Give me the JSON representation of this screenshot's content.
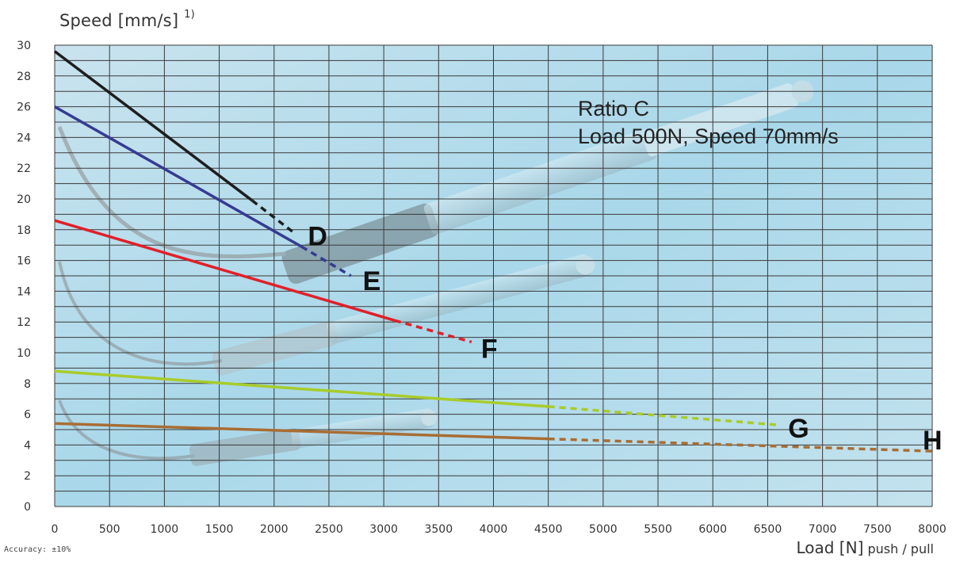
{
  "chart_data": {
    "type": "line",
    "ylabel": "Speed [mm/s]",
    "ylabel_note": "1)",
    "xlabel_main": "Load [N]",
    "xlabel_sub": "push / pull",
    "xlim": [
      0,
      8000
    ],
    "ylim": [
      0,
      30
    ],
    "xticks": [
      "0",
      "500",
      "1000",
      "1500",
      "2000",
      "2500",
      "3000",
      "3500",
      "4000",
      "4500",
      "5000",
      "5500",
      "6000",
      "6500",
      "7000",
      "7500",
      "8000"
    ],
    "yticks": [
      "0",
      "2",
      "4",
      "6",
      "8",
      "10",
      "12",
      "14",
      "16",
      "18",
      "20",
      "22",
      "24",
      "26",
      "28",
      "30"
    ],
    "grid": true,
    "annotation": [
      "Ratio C",
      "Load 500N, Speed 70mm/s"
    ],
    "footnote": "Accuracy: ±10%",
    "series": [
      {
        "name": "D",
        "color": "#1e1e1e",
        "solid": [
          [
            0,
            29.6
          ],
          [
            1800,
            19.9
          ]
        ],
        "dashed": [
          [
            1800,
            19.9
          ],
          [
            2200,
            17.7
          ]
        ]
      },
      {
        "name": "E",
        "color": "#353b92",
        "solid": [
          [
            0,
            26.0
          ],
          [
            2250,
            16.9
          ]
        ],
        "dashed": [
          [
            2250,
            16.9
          ],
          [
            2700,
            15.0
          ]
        ]
      },
      {
        "name": "F",
        "color": "#e0202a",
        "solid": [
          [
            0,
            18.6
          ],
          [
            3100,
            12.1
          ]
        ],
        "dashed": [
          [
            3100,
            12.1
          ],
          [
            3800,
            10.7
          ]
        ]
      },
      {
        "name": "G",
        "color": "#a8cc2a",
        "solid": [
          [
            0,
            8.8
          ],
          [
            4500,
            6.5
          ]
        ],
        "dashed": [
          [
            4500,
            6.5
          ],
          [
            6600,
            5.3
          ]
        ]
      },
      {
        "name": "H",
        "color": "#a86d33",
        "solid": [
          [
            0,
            5.4
          ],
          [
            4500,
            4.4
          ]
        ],
        "dashed": [
          [
            4500,
            4.4
          ],
          [
            8000,
            3.6
          ]
        ]
      }
    ]
  }
}
